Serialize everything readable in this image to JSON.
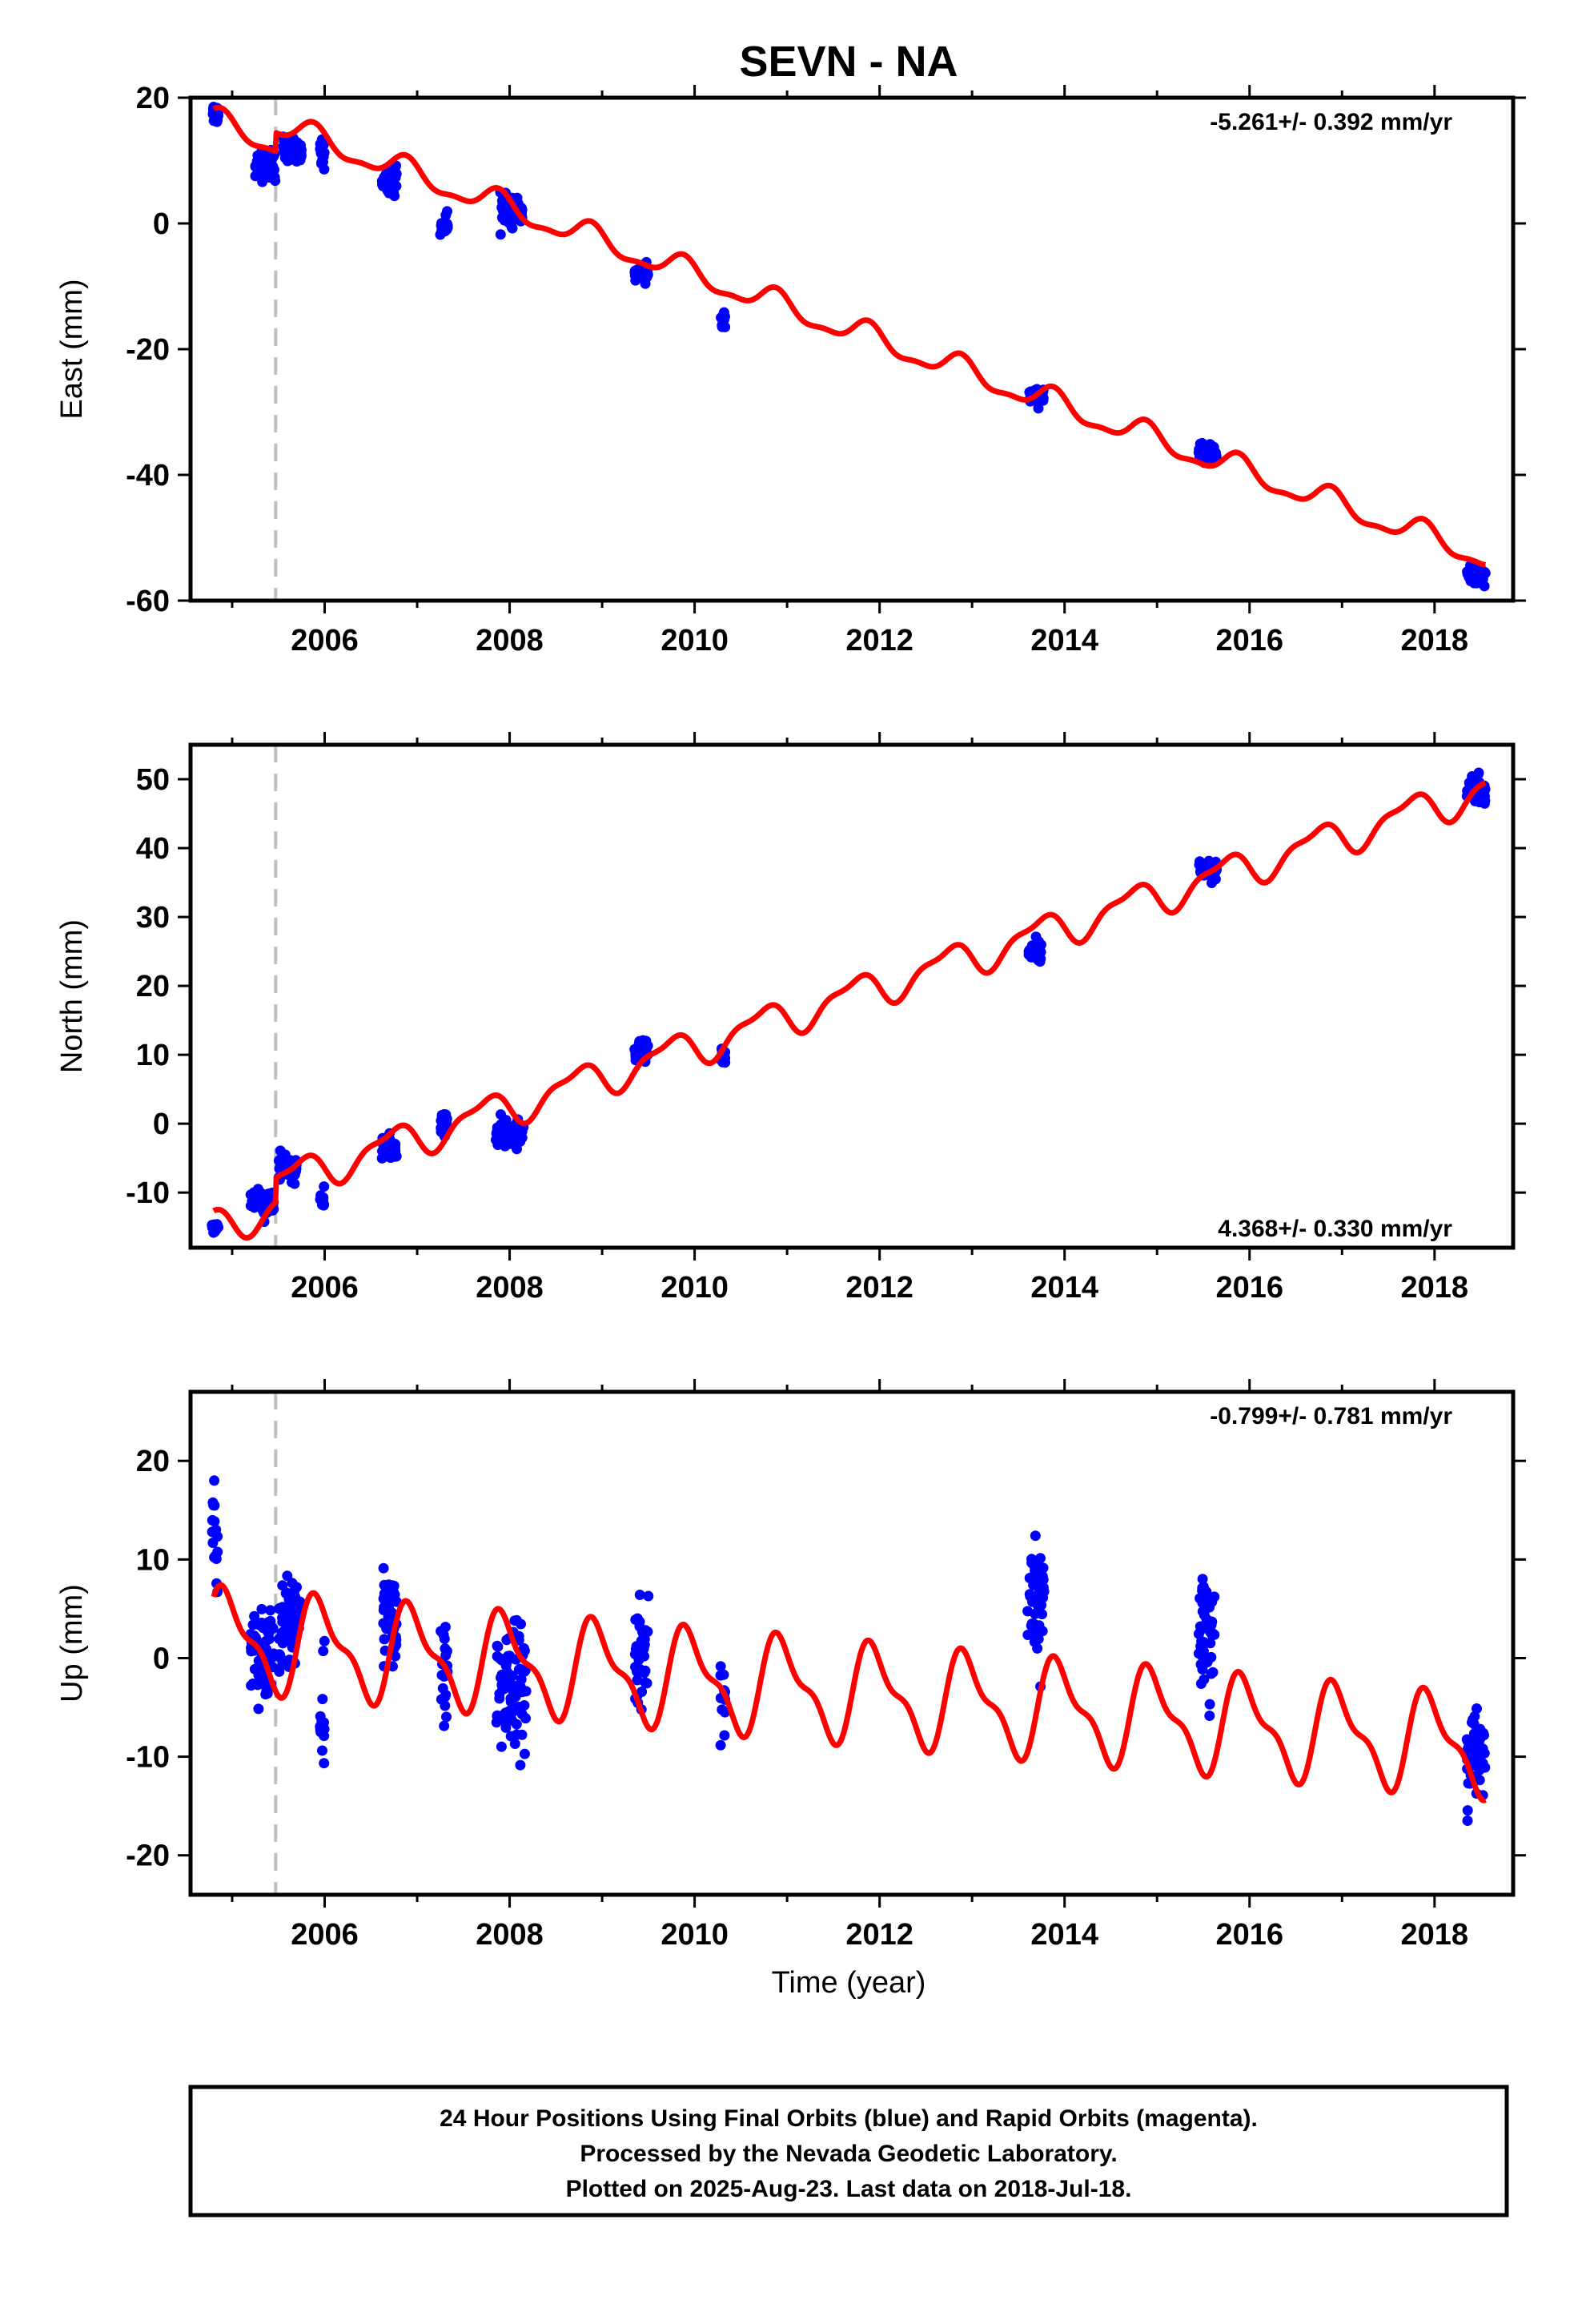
{
  "figure": {
    "title": "SEVN - NA",
    "xlabel": "Time (year)",
    "caption": [
      "24 Hour Positions Using Final Orbits (blue) and Rapid Orbits (magenta).",
      "Processed by the Nevada Geodetic Laboratory.",
      "Plotted on 2025-Aug-23. Last data on 2018-Jul-18."
    ]
  },
  "colors": {
    "data_points": "#0000ff",
    "model_line": "#ff0000",
    "equipment_change": "#c0c0c0",
    "frame": "#000000"
  },
  "chart_data": [
    {
      "type": "scatter",
      "ylabel": "East (mm)",
      "rate_text": "-5.261+/- 0.392 mm/yr",
      "rate_position": "top-right",
      "xlim": [
        2004.55,
        2018.85
      ],
      "ylim": [
        -60,
        20
      ],
      "x_ticks": [
        2006,
        2008,
        2010,
        2012,
        2014,
        2016,
        2018
      ],
      "y_ticks": [
        -60,
        -40,
        -20,
        0,
        20
      ],
      "equipment_change_x": 2005.47,
      "model": {
        "rate": -5.261,
        "offset": 16.2,
        "t0": 2004.8,
        "annual_amp": 1.9,
        "annual_phase": 1.1,
        "semi_amp": 0.7,
        "semi_phase": 0.5,
        "step_at": 2005.47,
        "step": 3.0
      },
      "data_clusters": [
        {
          "start": 2004.78,
          "end": 2004.85,
          "center": 17.5,
          "spread": 1.4
        },
        {
          "start": 2005.25,
          "end": 2005.47,
          "center": 9.5,
          "spread": 2.0
        },
        {
          "start": 2005.55,
          "end": 2005.75,
          "center": 11.5,
          "spread": 1.8
        },
        {
          "start": 2005.95,
          "end": 2006.0,
          "center": 11.0,
          "spread": 1.8
        },
        {
          "start": 2006.62,
          "end": 2006.78,
          "center": 7.0,
          "spread": 1.9
        },
        {
          "start": 2007.25,
          "end": 2007.33,
          "center": -0.5,
          "spread": 1.4
        },
        {
          "start": 2007.9,
          "end": 2008.15,
          "center": 2.0,
          "spread": 1.8
        },
        {
          "start": 2009.35,
          "end": 2009.5,
          "center": -8.0,
          "spread": 1.1
        },
        {
          "start": 2010.28,
          "end": 2010.33,
          "center": -15.5,
          "spread": 1.3
        },
        {
          "start": 2013.62,
          "end": 2013.78,
          "center": -27.5,
          "spread": 1.1
        },
        {
          "start": 2015.45,
          "end": 2015.65,
          "center": -36.5,
          "spread": 1.1
        },
        {
          "start": 2018.35,
          "end": 2018.55,
          "center": -56.0,
          "spread": 1.1
        }
      ]
    },
    {
      "type": "scatter",
      "ylabel": "North (mm)",
      "rate_text": "4.368+/- 0.330 mm/yr",
      "rate_position": "bottom-right",
      "xlim": [
        2004.55,
        2018.85
      ],
      "ylim": [
        -18,
        55
      ],
      "x_ticks": [
        2006,
        2008,
        2010,
        2012,
        2014,
        2016,
        2018
      ],
      "y_ticks": [
        -10,
        0,
        10,
        20,
        30,
        40,
        50
      ],
      "equipment_change_x": 2005.47,
      "model": {
        "rate": 4.368,
        "offset": -15.0,
        "t0": 2004.8,
        "annual_amp": 2.4,
        "annual_phase": 2.1,
        "semi_amp": 0.9,
        "semi_phase": 0.3,
        "step_at": 2005.47,
        "step": 3.5
      },
      "data_clusters": [
        {
          "start": 2004.78,
          "end": 2004.85,
          "center": -15.0,
          "spread": 1.2
        },
        {
          "start": 2005.2,
          "end": 2005.45,
          "center": -11.5,
          "spread": 1.6
        },
        {
          "start": 2005.5,
          "end": 2005.7,
          "center": -6.5,
          "spread": 1.4
        },
        {
          "start": 2005.95,
          "end": 2006.0,
          "center": -11.0,
          "spread": 1.3
        },
        {
          "start": 2006.62,
          "end": 2006.78,
          "center": -3.5,
          "spread": 1.4
        },
        {
          "start": 2007.25,
          "end": 2007.33,
          "center": 0.0,
          "spread": 1.5
        },
        {
          "start": 2007.85,
          "end": 2008.15,
          "center": -1.5,
          "spread": 1.5
        },
        {
          "start": 2009.35,
          "end": 2009.5,
          "center": 10.5,
          "spread": 1.2
        },
        {
          "start": 2010.28,
          "end": 2010.33,
          "center": 10.0,
          "spread": 0.9
        },
        {
          "start": 2013.6,
          "end": 2013.75,
          "center": 25.0,
          "spread": 1.4
        },
        {
          "start": 2015.45,
          "end": 2015.65,
          "center": 37.0,
          "spread": 1.2
        },
        {
          "start": 2018.35,
          "end": 2018.55,
          "center": 48.5,
          "spread": 1.7
        }
      ]
    },
    {
      "type": "scatter",
      "ylabel": "Up (mm)",
      "rate_text": "-0.799+/- 0.781 mm/yr",
      "rate_position": "top-right",
      "xlim": [
        2004.55,
        2018.85
      ],
      "ylim": [
        -24,
        27
      ],
      "x_ticks": [
        2006,
        2008,
        2010,
        2012,
        2014,
        2016,
        2018
      ],
      "y_ticks": [
        -20,
        -10,
        0,
        10,
        20
      ],
      "equipment_change_x": 2005.47,
      "model": {
        "rate": -0.799,
        "offset": 2.0,
        "t0": 2004.8,
        "annual_amp": 4.5,
        "annual_phase": 0.6,
        "semi_amp": 1.8,
        "semi_phase": 1.2,
        "step_at": 2005.47,
        "step": 0.0
      },
      "data_clusters": [
        {
          "start": 2004.78,
          "end": 2004.85,
          "center": 13.0,
          "spread": 4.0
        },
        {
          "start": 2005.2,
          "end": 2005.45,
          "center": 0.0,
          "spread": 4.5
        },
        {
          "start": 2005.5,
          "end": 2005.75,
          "center": 3.0,
          "spread": 4.0
        },
        {
          "start": 2005.95,
          "end": 2006.0,
          "center": -5.0,
          "spread": 8.0
        },
        {
          "start": 2006.62,
          "end": 2006.78,
          "center": 4.0,
          "spread": 4.0
        },
        {
          "start": 2007.25,
          "end": 2007.33,
          "center": -2.0,
          "spread": 4.5
        },
        {
          "start": 2007.85,
          "end": 2008.18,
          "center": -3.0,
          "spread": 5.0
        },
        {
          "start": 2009.35,
          "end": 2009.5,
          "center": 0.5,
          "spread": 4.5
        },
        {
          "start": 2010.28,
          "end": 2010.33,
          "center": -4.0,
          "spread": 3.5
        },
        {
          "start": 2013.6,
          "end": 2013.78,
          "center": 5.0,
          "spread": 5.5
        },
        {
          "start": 2015.45,
          "end": 2015.62,
          "center": 2.0,
          "spread": 5.0
        },
        {
          "start": 2018.35,
          "end": 2018.55,
          "center": -9.5,
          "spread": 3.5
        }
      ]
    }
  ]
}
